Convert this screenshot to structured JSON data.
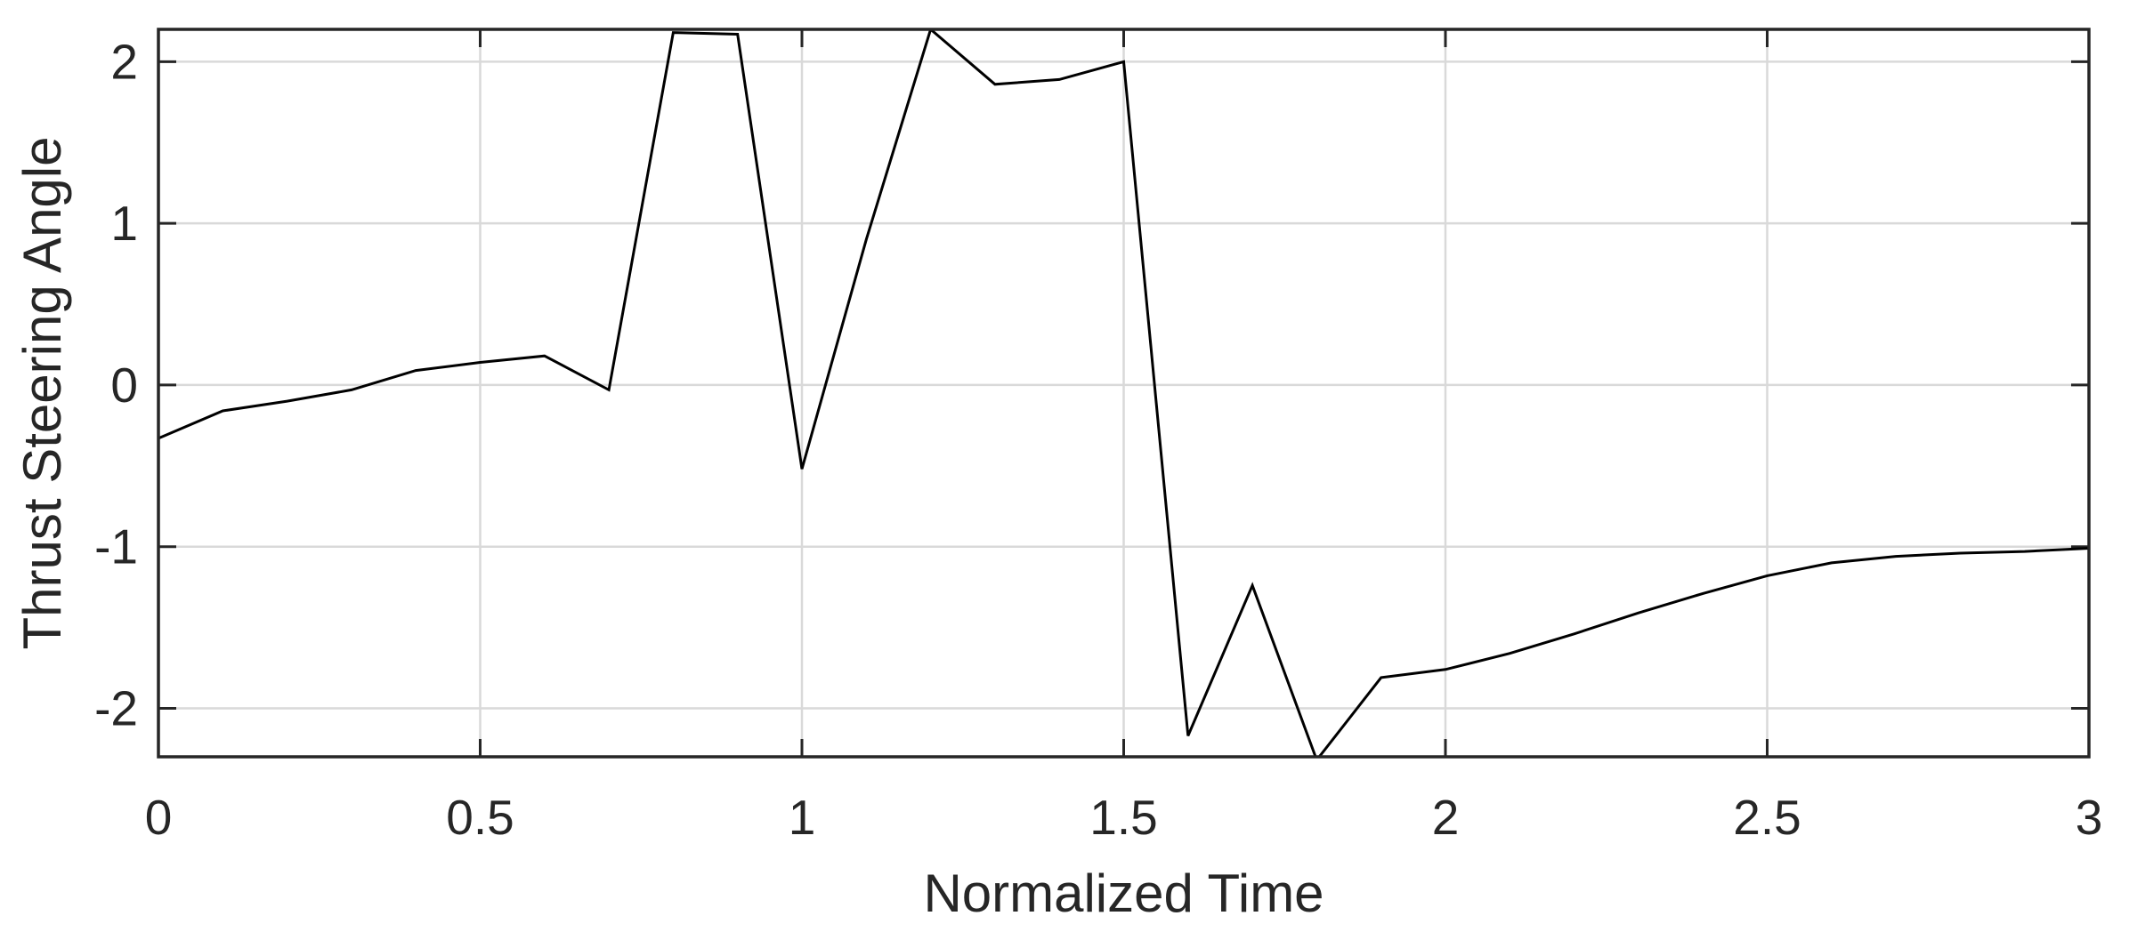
{
  "chart_data": {
    "type": "line",
    "title": "",
    "xlabel": "Normalized Time",
    "ylabel": "Thrust Steering Angle",
    "xlim": [
      0,
      3
    ],
    "ylim": [
      -2.3,
      2.2
    ],
    "xticks": [
      0,
      0.5,
      1,
      1.5,
      2,
      2.5,
      3
    ],
    "xtick_labels": [
      "0",
      "0.5",
      "1",
      "1.5",
      "2",
      "2.5",
      "3"
    ],
    "yticks": [
      -2,
      -1,
      0,
      1,
      2
    ],
    "ytick_labels": [
      "-2",
      "-1",
      "0",
      "1",
      "2"
    ],
    "grid": true,
    "line_color": "#000000",
    "series": [
      {
        "x": [
          0,
          0.1,
          0.2,
          0.3,
          0.4,
          0.5,
          0.6,
          0.7,
          0.8,
          0.9,
          1.0,
          1.1,
          1.2,
          1.3,
          1.4,
          1.5,
          1.6,
          1.7,
          1.8,
          1.9,
          2.0,
          2.1,
          2.2,
          2.3,
          2.4,
          2.5,
          2.6,
          2.7,
          2.8,
          2.9,
          3.0
        ],
        "y": [
          -0.33,
          -0.16,
          -0.1,
          -0.03,
          0.09,
          0.14,
          0.18,
          -0.03,
          2.18,
          2.17,
          -0.52,
          0.9,
          2.2,
          1.86,
          1.89,
          2.0,
          -2.17,
          -1.24,
          -2.32,
          -1.81,
          -1.76,
          -1.66,
          -1.54,
          -1.41,
          -1.29,
          -1.18,
          -1.1,
          -1.06,
          -1.04,
          -1.03,
          -1.01
        ]
      }
    ]
  }
}
